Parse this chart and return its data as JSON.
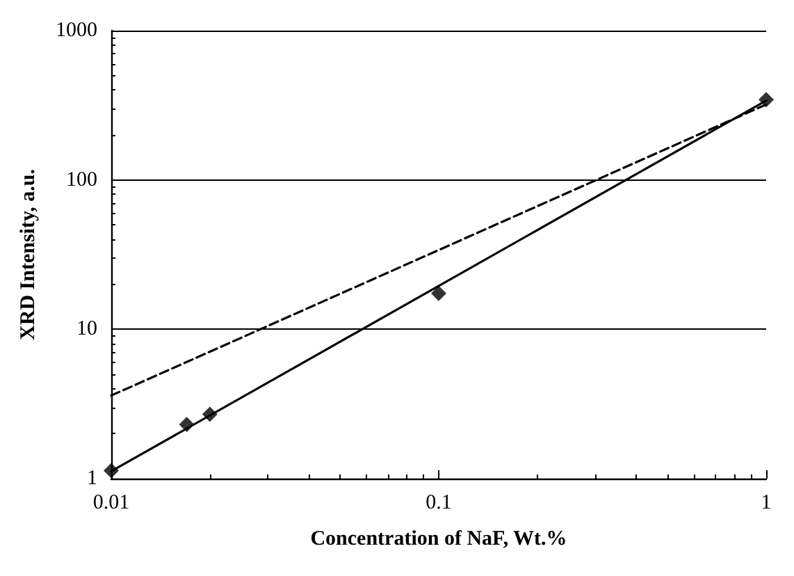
{
  "chart_data": {
    "type": "scatter",
    "xlabel": "Concentration of NaF, Wt.%",
    "ylabel": "XRD Intensity, a.u.",
    "log": "xy",
    "grid": "y",
    "xlim": [
      0.01,
      1
    ],
    "xticks": [
      0.01,
      0.1,
      1
    ],
    "ylim": [
      1,
      1000
    ],
    "yticks": [
      1,
      10,
      100,
      1000
    ],
    "series": [
      {
        "marker": "diamond",
        "color": "#000000",
        "x": [
          0.01,
          0.017,
          0.02,
          0.1,
          1
        ],
        "values": [
          1.13,
          2.3,
          2.7,
          17.4,
          345
        ]
      },
      {
        "type": "line",
        "marker": "none",
        "line_style": "solid",
        "color": "#000000",
        "x": [
          0.01,
          1
        ],
        "values": [
          1.12,
          340
        ]
      },
      {
        "type": "line",
        "marker": "none",
        "line_style": "dashed",
        "color": "#000000",
        "x": [
          0.01,
          1
        ],
        "values": [
          3.6,
          320
        ]
      }
    ]
  }
}
